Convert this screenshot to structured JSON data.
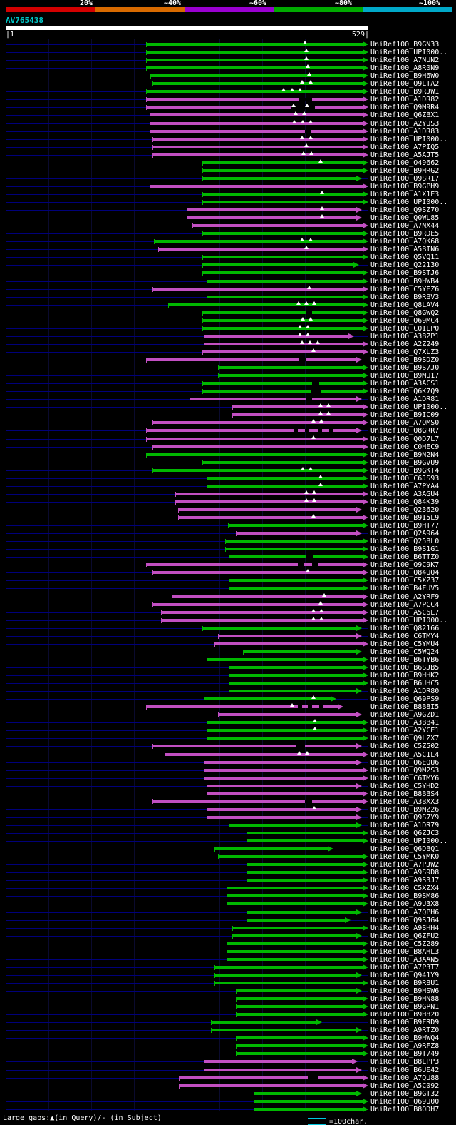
{
  "colors": {
    "background": "#000000",
    "row_guide": "#00007a",
    "query_bar": "#ffffff",
    "query_id_text": "#00c8c8",
    "text": "#ffffff",
    "scale_line": "#00c8e0"
  },
  "header": {
    "scale_labels": [
      "20%",
      "~40%",
      "~60%",
      "~80%",
      "~100%"
    ],
    "scale_colors": [
      "#d40000",
      "#d86a00",
      "#9a00d0",
      "#00aa00",
      "#00a8c8"
    ],
    "query_id": "AV765438",
    "ruler_left": "|1",
    "ruler_right": "529|"
  },
  "footer": {
    "gaps_legend": "Large gaps:▲(in Query)/- (in Subject)",
    "char_scale": "=100char."
  },
  "chart_data": {
    "type": "bar",
    "title": "AV765438 similarity search hit overview",
    "x_axis": {
      "min": 1,
      "max": 529
    },
    "legend_position": "top",
    "grid": "faint-vertical",
    "label_prefix": "UniRef100_",
    "bar_colors": {
      "g": "#00b800",
      "m": "#c24fc2"
    },
    "rows": [
      [
        "B9GN33",
        205,
        517,
        "g",
        [
          428
        ],
        []
      ],
      [
        "UPI000..",
        205,
        517,
        "g",
        [
          430
        ],
        []
      ],
      [
        "A7NUN2",
        205,
        517,
        "g",
        [
          430
        ],
        []
      ],
      [
        "A8R0N9",
        205,
        517,
        "g",
        [
          432
        ],
        []
      ],
      [
        "B9H6W0",
        211,
        517,
        "g",
        [
          434
        ],
        []
      ],
      [
        "Q9LTA2",
        214,
        517,
        "g",
        [
          424,
          436
        ],
        []
      ],
      [
        "B9RJW1",
        205,
        517,
        "g",
        [
          398,
          410,
          421
        ],
        []
      ],
      [
        "A1DR82",
        205,
        517,
        "m",
        [],
        [
          [
            420,
            18
          ]
        ]
      ],
      [
        "Q9M9R4",
        205,
        517,
        "m",
        [
          412,
          431
        ],
        [
          [
            408,
            34
          ]
        ]
      ],
      [
        "Q6ZBX1",
        210,
        517,
        "m",
        [
          415,
          427
        ],
        []
      ],
      [
        "A2YUS3",
        210,
        517,
        "m",
        [
          413,
          425,
          436
        ],
        []
      ],
      [
        "A1DR83",
        210,
        517,
        "m",
        [],
        [
          [
            428,
            8
          ]
        ]
      ],
      [
        "UPI000..",
        214,
        517,
        "m",
        [
          424,
          436
        ],
        []
      ],
      [
        "A7PIQ5",
        214,
        517,
        "m",
        [
          430
        ],
        []
      ],
      [
        "A5AJT5",
        214,
        517,
        "m",
        [
          426,
          437
        ],
        []
      ],
      [
        "O49662",
        284,
        517,
        "g",
        [
          450
        ],
        []
      ],
      [
        "B9HRG2",
        284,
        517,
        "g",
        [],
        []
      ],
      [
        "Q9SR17",
        284,
        508,
        "g",
        [],
        []
      ],
      [
        "B9GPH9",
        210,
        517,
        "m",
        [],
        []
      ],
      [
        "A1X1E3",
        284,
        517,
        "g",
        [
          452
        ],
        []
      ],
      [
        "UPI000..",
        284,
        517,
        "g",
        [],
        []
      ],
      [
        "Q9SZ70",
        262,
        508,
        "m",
        [
          452
        ],
        []
      ],
      [
        "Q0WL85",
        262,
        508,
        "m",
        [
          452
        ],
        []
      ],
      [
        "A7NX44",
        270,
        517,
        "m",
        [],
        []
      ],
      [
        "B9RDE5",
        284,
        517,
        "g",
        [],
        []
      ],
      [
        "A7QK68",
        216,
        517,
        "g",
        [
          424,
          436
        ],
        []
      ],
      [
        "A5BIN6",
        222,
        517,
        "m",
        [
          430
        ],
        []
      ],
      [
        "Q5VQ11",
        284,
        517,
        "g",
        [],
        []
      ],
      [
        "Q22130",
        284,
        504,
        "g",
        [],
        []
      ],
      [
        "B9STJ6",
        284,
        517,
        "g",
        [],
        []
      ],
      [
        "B9HWB4",
        290,
        517,
        "g",
        [],
        []
      ],
      [
        "C5YEZ6",
        214,
        517,
        "m",
        [
          434
        ],
        []
      ],
      [
        "B9RBV3",
        290,
        517,
        "g",
        [],
        []
      ],
      [
        "Q8LAV4",
        236,
        517,
        "g",
        [
          419,
          430,
          441
        ],
        []
      ],
      [
        "Q8GWQ2",
        284,
        517,
        "g",
        [],
        [
          [
            430,
            8
          ]
        ]
      ],
      [
        "Q69MC4",
        284,
        517,
        "g",
        [
          425,
          436
        ],
        []
      ],
      [
        "C0ILP0",
        284,
        517,
        "g",
        [
          421,
          432
        ],
        []
      ],
      [
        "A3BZP1",
        286,
        497,
        "m",
        [
          421,
          432
        ],
        []
      ],
      [
        "A2Z249",
        286,
        517,
        "m",
        [
          424,
          435,
          446
        ],
        []
      ],
      [
        "Q7XLZ3",
        284,
        517,
        "m",
        [
          440
        ],
        []
      ],
      [
        "B9SDZ0",
        205,
        508,
        "m",
        [],
        [
          [
            420,
            10
          ]
        ]
      ],
      [
        "B9S7J0",
        306,
        517,
        "g",
        [],
        []
      ],
      [
        "B9MU17",
        306,
        517,
        "g",
        [],
        []
      ],
      [
        "A3ACS1",
        284,
        517,
        "g",
        [],
        [
          [
            438,
            10
          ]
        ]
      ],
      [
        "Q6K7Q9",
        284,
        517,
        "g",
        [],
        [
          [
            436,
            14
          ]
        ]
      ],
      [
        "A1DR81",
        266,
        508,
        "m",
        [],
        [
          [
            430,
            8
          ]
        ]
      ],
      [
        "UPI000..",
        326,
        517,
        "m",
        [
          450,
          461
        ],
        []
      ],
      [
        "B9IC09",
        326,
        517,
        "m",
        [
          450,
          461
        ],
        []
      ],
      [
        "A7QMS0",
        214,
        517,
        "m",
        [
          440,
          451
        ],
        []
      ],
      [
        "Q8GRR7",
        205,
        508,
        "m",
        [],
        [
          [
            412,
            6
          ],
          [
            428,
            6
          ],
          [
            446,
            6
          ],
          [
            462,
            6
          ]
        ]
      ],
      [
        "Q0D7L7",
        205,
        517,
        "m",
        [
          440
        ],
        []
      ],
      [
        "C0HEC9",
        214,
        517,
        "m",
        [],
        []
      ],
      [
        "B9N2N4",
        205,
        517,
        "g",
        [],
        []
      ],
      [
        "B9GVU9",
        284,
        517,
        "g",
        [],
        []
      ],
      [
        "B9GKT4",
        214,
        517,
        "g",
        [
          425,
          436
        ],
        []
      ],
      [
        "C6JS93",
        290,
        517,
        "g",
        [
          450
        ],
        []
      ],
      [
        "A7PYA4",
        290,
        517,
        "g",
        [
          450
        ],
        []
      ],
      [
        "A3AGU4",
        246,
        517,
        "m",
        [
          430,
          441
        ],
        []
      ],
      [
        "Q84K39",
        246,
        517,
        "m",
        [
          430,
          441
        ],
        []
      ],
      [
        "Q23620",
        250,
        508,
        "m",
        [],
        []
      ],
      [
        "B9I5L9",
        250,
        517,
        "m",
        [
          440
        ],
        []
      ],
      [
        "B9HT77",
        320,
        517,
        "g",
        [],
        []
      ],
      [
        "Q2A964",
        331,
        508,
        "m",
        [],
        []
      ],
      [
        "Q25BL0",
        316,
        517,
        "g",
        [],
        []
      ],
      [
        "B9S1G1",
        316,
        517,
        "g",
        [],
        []
      ],
      [
        "B6TTZ0",
        321,
        517,
        "g",
        [],
        [
          [
            430,
            10
          ]
        ]
      ],
      [
        "Q9C9K7",
        205,
        517,
        "m",
        [],
        [
          [
            418,
            8
          ],
          [
            438,
            8
          ]
        ]
      ],
      [
        "Q84UQ4",
        214,
        517,
        "m",
        [
          432
        ],
        []
      ],
      [
        "C5XZ37",
        321,
        517,
        "g",
        [],
        []
      ],
      [
        "B4FUV5",
        321,
        517,
        "g",
        [],
        []
      ],
      [
        "A2YRF9",
        241,
        517,
        "m",
        [
          455
        ],
        []
      ],
      [
        "A7PCC4",
        214,
        517,
        "m",
        [
          450
        ],
        []
      ],
      [
        "A5C6L7",
        226,
        517,
        "m",
        [
          440,
          451
        ],
        []
      ],
      [
        "UPI000..",
        226,
        517,
        "m",
        [
          440,
          451
        ],
        []
      ],
      [
        "Q82166",
        284,
        508,
        "g",
        [],
        []
      ],
      [
        "C6TMY4",
        306,
        508,
        "m",
        [],
        []
      ],
      [
        "C5YMU4",
        301,
        517,
        "m",
        [],
        []
      ],
      [
        "C5WQ24",
        341,
        508,
        "g",
        [],
        []
      ],
      [
        "B6TYB6",
        290,
        517,
        "g",
        [],
        []
      ],
      [
        "B6SJB5",
        321,
        517,
        "g",
        [],
        []
      ],
      [
        "B9HHK2",
        321,
        517,
        "g",
        [],
        []
      ],
      [
        "B6UHC5",
        321,
        517,
        "g",
        [],
        []
      ],
      [
        "A1DR80",
        321,
        508,
        "g",
        [],
        []
      ],
      [
        "Q69PS9",
        286,
        472,
        "g",
        [
          440
        ],
        []
      ],
      [
        "B8B8I5",
        205,
        482,
        "m",
        [
          410
        ],
        [
          [
            418,
            6
          ],
          [
            432,
            6
          ],
          [
            448,
            6
          ]
        ]
      ],
      [
        "A9GZD1",
        306,
        508,
        "m",
        [],
        []
      ],
      [
        "A3BB41",
        290,
        517,
        "g",
        [
          442
        ],
        []
      ],
      [
        "A2YCE1",
        290,
        517,
        "g",
        [
          442
        ],
        []
      ],
      [
        "Q9LZX7",
        290,
        517,
        "g",
        [],
        []
      ],
      [
        "C5Z502",
        214,
        508,
        "m",
        [],
        [
          [
            416,
            12
          ]
        ]
      ],
      [
        "A5C1L4",
        231,
        517,
        "m",
        [
          420,
          431
        ],
        []
      ],
      [
        "Q6EQU6",
        286,
        508,
        "m",
        [],
        []
      ],
      [
        "Q9M2S3",
        286,
        517,
        "m",
        [],
        []
      ],
      [
        "C6TMY6",
        286,
        517,
        "m",
        [],
        []
      ],
      [
        "C5YHD2",
        290,
        508,
        "m",
        [],
        []
      ],
      [
        "B8BBS4",
        290,
        517,
        "m",
        [],
        []
      ],
      [
        "A3BXX3",
        214,
        517,
        "m",
        [],
        [
          [
            428,
            10
          ]
        ]
      ],
      [
        "B9MZ26",
        290,
        508,
        "m",
        [
          441
        ],
        []
      ],
      [
        "Q9S7Y9",
        290,
        508,
        "m",
        [],
        []
      ],
      [
        "A1DR79",
        321,
        508,
        "g",
        [],
        []
      ],
      [
        "Q6ZJC3",
        346,
        517,
        "g",
        [],
        []
      ],
      [
        "UPI000..",
        346,
        517,
        "g",
        [],
        []
      ],
      [
        "Q6DBQ1",
        301,
        468,
        "g",
        [],
        []
      ],
      [
        "C5YMK0",
        306,
        517,
        "g",
        [],
        []
      ],
      [
        "A7PJW2",
        346,
        517,
        "g",
        [],
        []
      ],
      [
        "A9S9D8",
        346,
        517,
        "g",
        [],
        []
      ],
      [
        "A9S3J7",
        346,
        517,
        "g",
        [],
        []
      ],
      [
        "C5XZX4",
        318,
        517,
        "g",
        [],
        []
      ],
      [
        "B9SM86",
        318,
        517,
        "g",
        [],
        []
      ],
      [
        "A9U3X8",
        318,
        517,
        "g",
        [],
        []
      ],
      [
        "A7QPH6",
        346,
        508,
        "g",
        [],
        []
      ],
      [
        "Q9SJG4",
        346,
        492,
        "g",
        [],
        []
      ],
      [
        "A9SHH4",
        326,
        517,
        "g",
        [],
        []
      ],
      [
        "Q6ZFU2",
        326,
        508,
        "g",
        [],
        []
      ],
      [
        "C5Z289",
        318,
        517,
        "g",
        [],
        []
      ],
      [
        "B8AHL3",
        318,
        517,
        "g",
        [],
        []
      ],
      [
        "A3AAN5",
        318,
        517,
        "g",
        [],
        []
      ],
      [
        "A7P3T7",
        301,
        517,
        "g",
        [],
        []
      ],
      [
        "Q941Y9",
        301,
        508,
        "g",
        [],
        []
      ],
      [
        "B9R8U1",
        301,
        517,
        "g",
        [],
        []
      ],
      [
        "B9HSW6",
        331,
        508,
        "g",
        [],
        []
      ],
      [
        "B9HN88",
        331,
        517,
        "g",
        [],
        []
      ],
      [
        "B9GPN1",
        331,
        517,
        "g",
        [],
        []
      ],
      [
        "B9H820",
        331,
        517,
        "g",
        [],
        []
      ],
      [
        "B9FRD9",
        296,
        452,
        "g",
        [],
        []
      ],
      [
        "A9RTZ0",
        296,
        508,
        "g",
        [],
        []
      ],
      [
        "B9HWQ4",
        331,
        517,
        "g",
        [],
        []
      ],
      [
        "A9RFZ8",
        331,
        517,
        "g",
        [],
        []
      ],
      [
        "B9T749",
        331,
        517,
        "g",
        [],
        []
      ],
      [
        "B8LPP3",
        286,
        502,
        "m",
        [],
        []
      ],
      [
        "B6UE42",
        286,
        508,
        "m",
        [],
        []
      ],
      [
        "A7QU88",
        251,
        517,
        "m",
        [],
        [
          [
            432,
            14
          ]
        ]
      ],
      [
        "A5C092",
        251,
        517,
        "m",
        [],
        []
      ],
      [
        "B9GT32",
        356,
        508,
        "g",
        [],
        []
      ],
      [
        "Q69U00",
        356,
        517,
        "g",
        [],
        []
      ],
      [
        "B8ODH7",
        356,
        517,
        "g",
        [],
        []
      ]
    ]
  }
}
